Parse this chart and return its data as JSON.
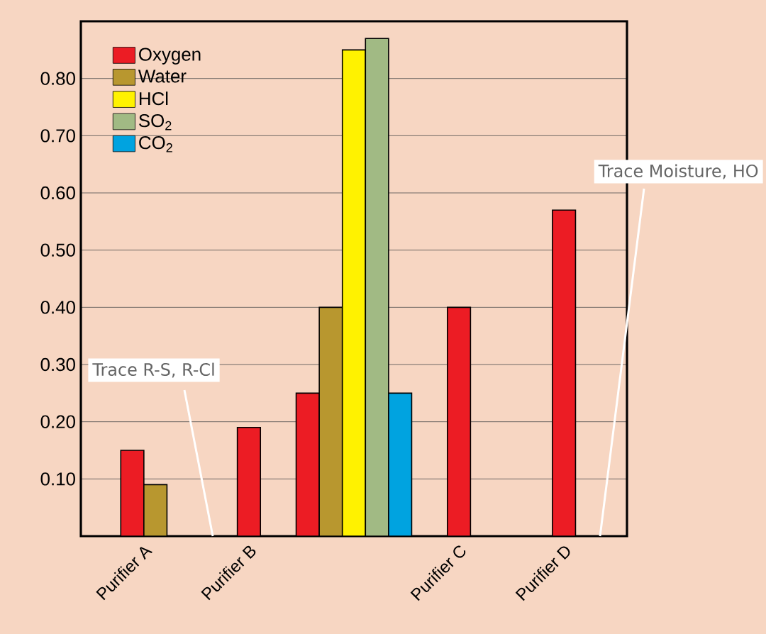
{
  "chart_data": {
    "type": "bar",
    "categories": [
      "Purifier A",
      "Purifier B",
      null,
      "Purifier C",
      "Purifier D"
    ],
    "series": [
      {
        "name": "Oxygen",
        "color": "#ec1c24",
        "values": [
          0.15,
          0.19,
          0.25,
          0.4,
          0.57
        ]
      },
      {
        "name": "Water",
        "color": "#b8972f",
        "values": [
          0.09,
          null,
          0.4,
          null,
          null
        ]
      },
      {
        "name": "HCl",
        "color": "#fff200",
        "values": [
          null,
          null,
          0.85,
          null,
          null
        ]
      },
      {
        "name": "SO$_{2}$",
        "color": "#a1ba84",
        "values": [
          null,
          null,
          0.87,
          null,
          null
        ]
      },
      {
        "name": "CO$_{2}$",
        "color": "#00a3e0",
        "values": [
          null,
          null,
          0.25,
          null,
          null
        ]
      }
    ],
    "ylim": [
      0,
      0.9
    ],
    "yticks": [
      {
        "value": 0.1,
        "label": "0.10"
      },
      {
        "value": 0.2,
        "label": "0.20"
      },
      {
        "value": 0.3,
        "label": "0.30"
      },
      {
        "value": 0.4,
        "label": "0.40"
      },
      {
        "value": 0.5,
        "label": "0.50"
      },
      {
        "value": 0.6,
        "label": "0.60"
      },
      {
        "value": 0.7,
        "label": "0.70"
      },
      {
        "value": 0.8,
        "label": "0.80"
      }
    ],
    "grid": "y",
    "legend": "top left",
    "annotations": [
      "Trace R-S, R-Cl",
      "Trace Moisture, HO"
    ]
  }
}
